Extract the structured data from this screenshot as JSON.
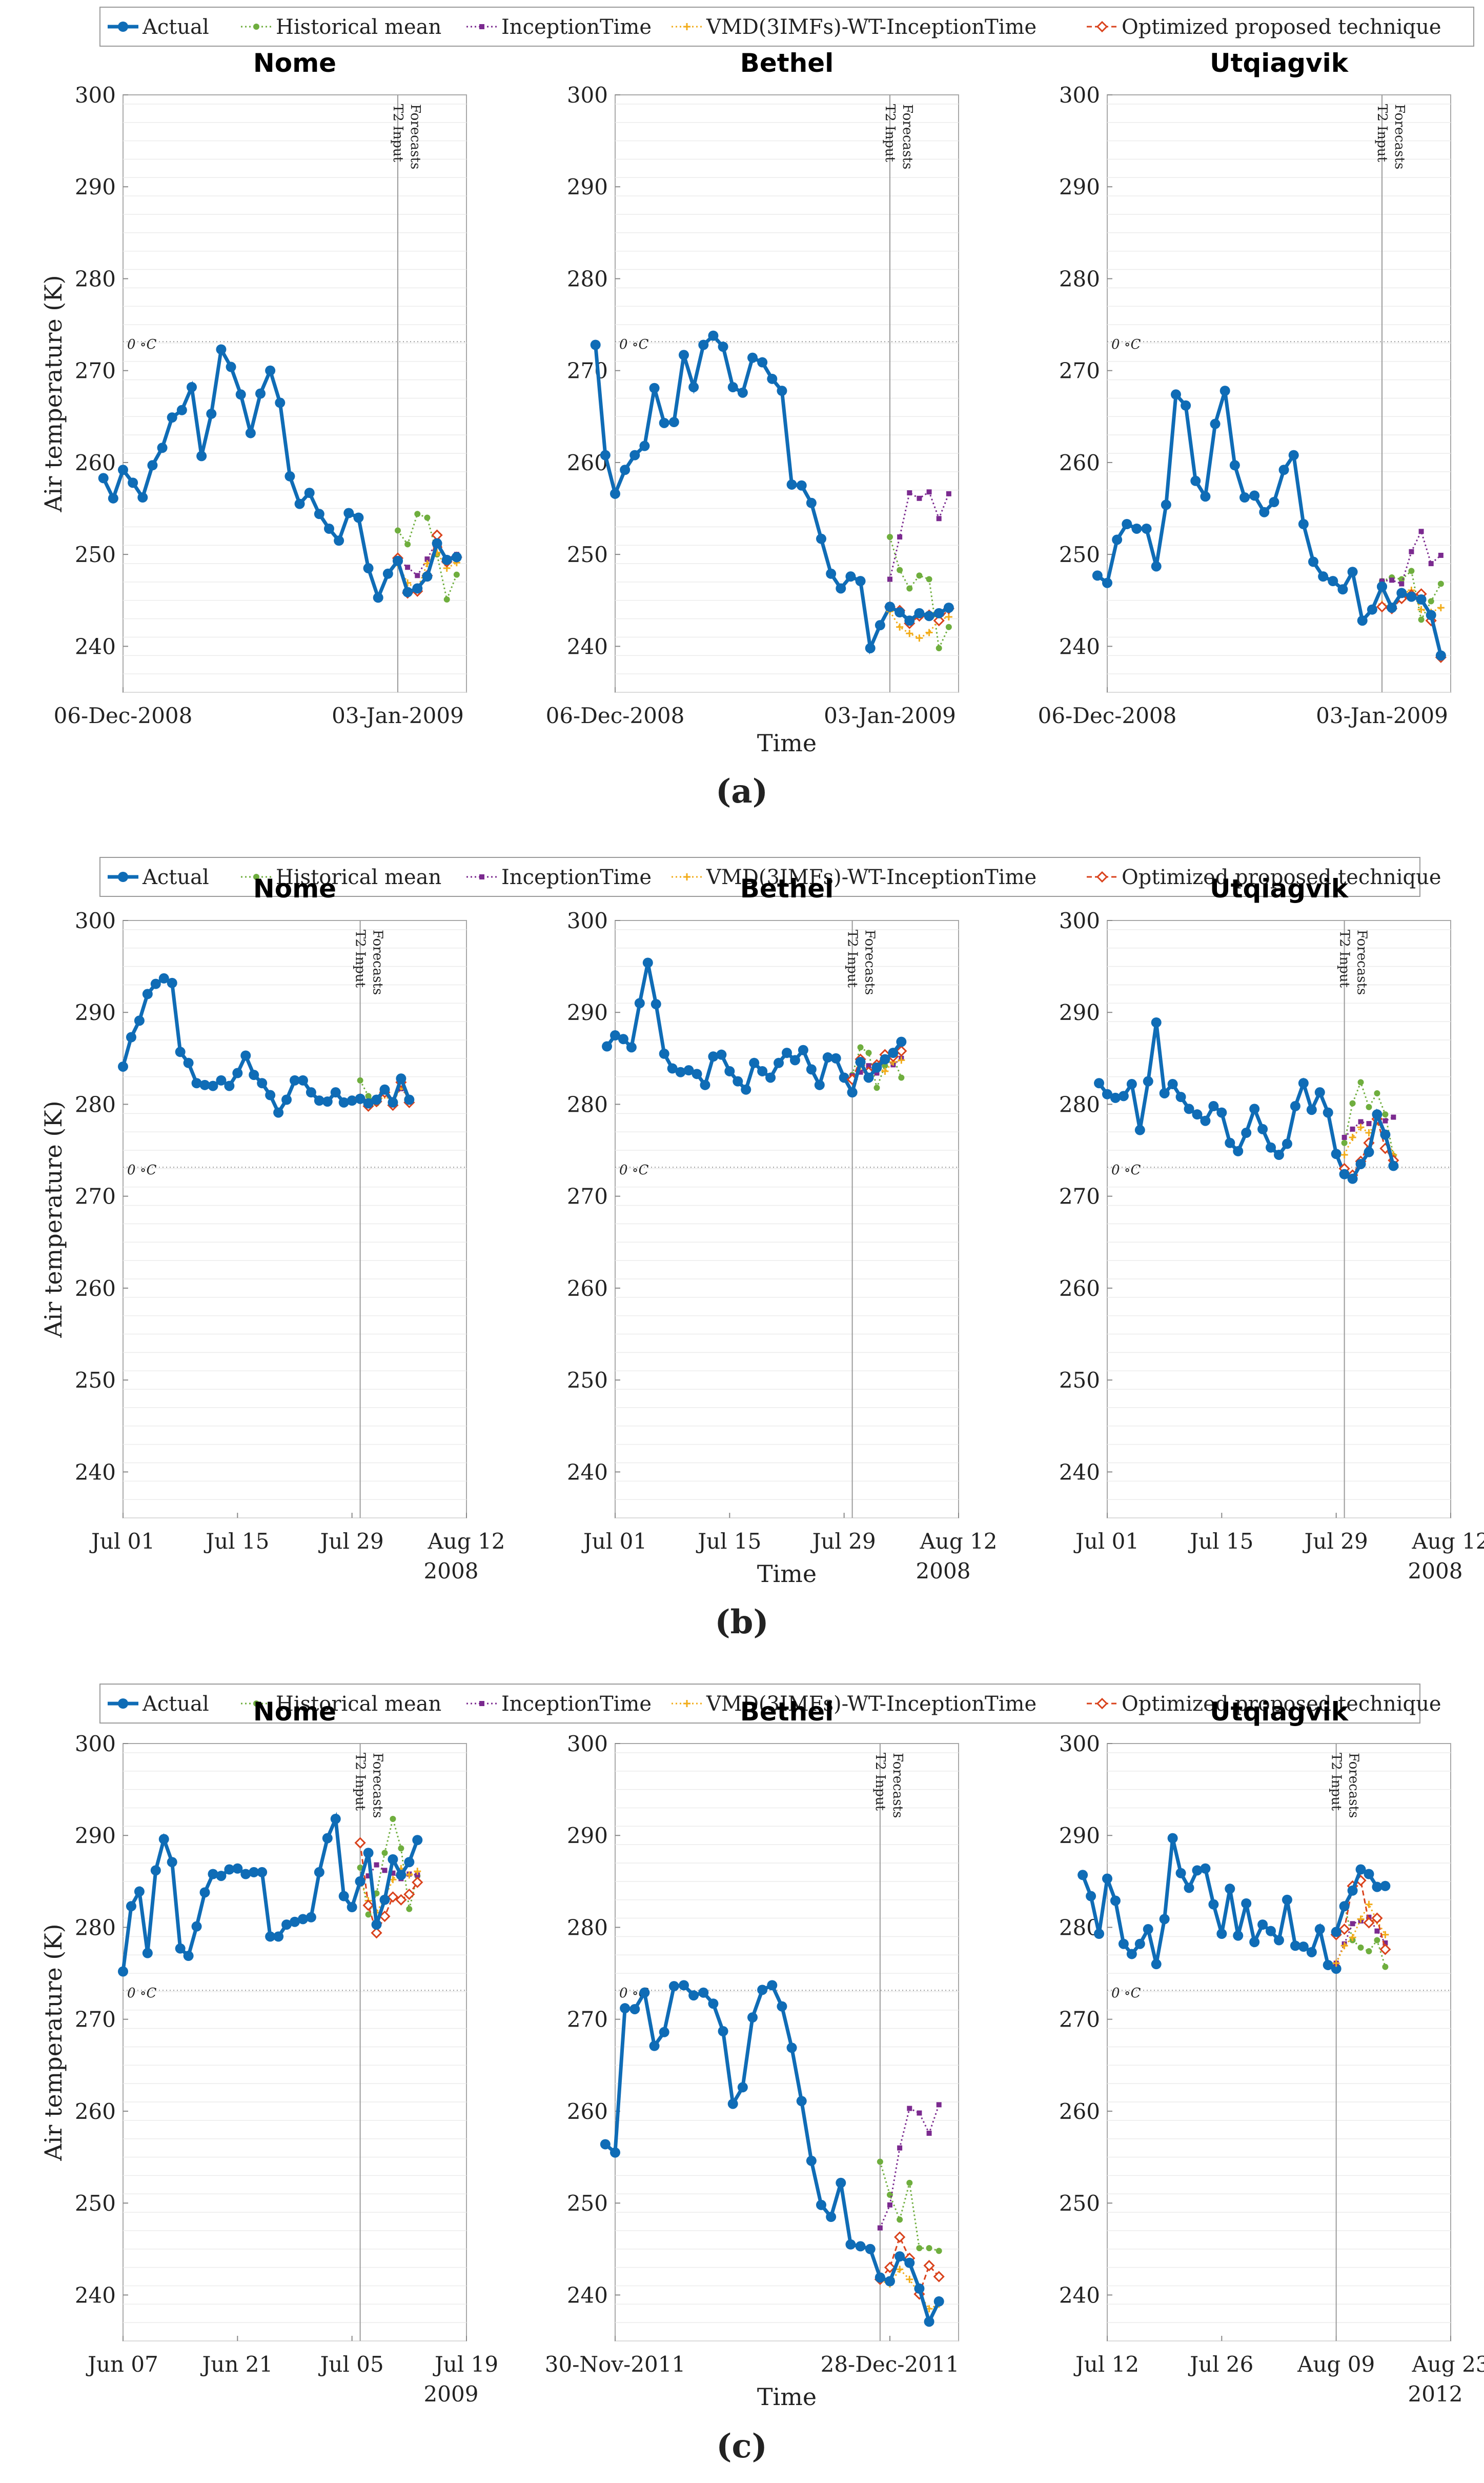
{
  "legend": {
    "items": [
      {
        "key": "actual",
        "label": "Actual"
      },
      {
        "key": "historical",
        "label": "Historical mean"
      },
      {
        "key": "inception",
        "label": "InceptionTime"
      },
      {
        "key": "vmd",
        "label": "VMD(3IMFs)-WT-InceptionTime"
      },
      {
        "key": "optimized",
        "label": "Optimized proposed technique"
      }
    ]
  },
  "series_colors": {
    "actual": "#0f6cb6",
    "historical": "#6fae3e",
    "inception": "#7b2a8f",
    "vmd": "#f2ac1a",
    "optimized": "#d9421c"
  },
  "common": {
    "ylabel": "Air temperature (K)",
    "xlabel": "Time",
    "freezing_label": "0 ∘C",
    "freezing_value": 273.15,
    "split_label_input": "T2 Input",
    "split_label_forecasts": "Forecasts",
    "yticks": [
      240,
      250,
      260,
      270,
      280,
      290,
      300
    ]
  },
  "chart_data": [
    {
      "panel": "(a)",
      "type": "line",
      "xticks": [
        {
          "label": "06-Dec-2008",
          "x": 0
        },
        {
          "label": "03-Jan-2009",
          "x": 28
        }
      ],
      "year_label": "",
      "xlim": [
        0,
        35
      ],
      "ylim": [
        235,
        300
      ],
      "split_x": 28,
      "charts": [
        {
          "title": "Nome",
          "actual": [
            258.3,
            256.1,
            259.2,
            257.8,
            256.2,
            259.7,
            261.6,
            264.9,
            265.7,
            268.2,
            260.7,
            265.3,
            272.3,
            270.4,
            267.4,
            263.2,
            267.5,
            270.0,
            266.5,
            258.5,
            255.5,
            256.7,
            254.4,
            252.8,
            251.5,
            254.5,
            254.0,
            248.5,
            245.3,
            247.9,
            249.3
          ],
          "actual_x0": 0,
          "forecasts": {
            "historical": [
              252.6,
              251.1,
              254.4,
              254.0,
              250.0,
              245.1,
              247.8
            ],
            "inception": [
              249.4,
              248.6,
              247.7,
              249.5,
              251.5,
              249.5,
              250.0
            ],
            "vmd": [
              249.0,
              246.9,
              246.2,
              249.0,
              250.2,
              248.5,
              249.1
            ],
            "optimized": [
              249.6,
              245.8,
              246.0,
              247.7,
              252.1,
              249.2,
              249.7
            ],
            "actual": [
              249.3,
              245.9,
              246.3,
              247.6,
              251.2,
              249.4,
              249.7
            ]
          }
        },
        {
          "title": "Bethel",
          "actual": [
            272.8,
            260.8,
            256.6,
            259.2,
            260.8,
            261.8,
            268.1,
            264.3,
            264.4,
            271.7,
            268.2,
            272.8,
            273.8,
            272.6,
            268.2,
            267.6,
            271.4,
            270.9,
            269.1,
            267.8,
            257.6,
            257.5,
            255.6,
            251.7,
            247.9,
            246.3,
            247.6,
            247.1,
            239.8,
            242.3,
            244.3
          ],
          "actual_x0": 0,
          "forecasts": {
            "historical": [
              251.9,
              248.3,
              246.3,
              247.7,
              247.3,
              239.8,
              242.1
            ],
            "inception": [
              247.3,
              251.9,
              256.7,
              256.1,
              256.8,
              253.9,
              256.6
            ],
            "vmd": [
              243.8,
              242.1,
              241.4,
              240.9,
              241.5,
              242.9,
              243.2
            ],
            "optimized": [
              244.3,
              243.9,
              242.5,
              243.3,
              243.4,
              242.8,
              244.1
            ],
            "actual": [
              244.3,
              243.7,
              242.8,
              243.6,
              243.3,
              243.6,
              244.2
            ]
          }
        },
        {
          "title": "Utqiagvik",
          "actual": [
            247.7,
            246.9,
            251.6,
            253.3,
            252.8,
            252.8,
            248.7,
            255.4,
            267.4,
            266.2,
            258.0,
            256.3,
            264.2,
            267.8,
            259.7,
            256.2,
            256.4,
            254.6,
            255.7,
            259.2,
            260.8,
            253.3,
            249.2,
            247.6,
            247.1,
            246.2,
            248.1,
            242.8,
            244.0,
            246.5
          ],
          "actual_x0": 0,
          "forecasts": {
            "historical": [
              247.1,
              247.5,
              247.3,
              248.2,
              242.9,
              244.9,
              246.8
            ],
            "inception": [
              247.1,
              247.2,
              246.8,
              250.3,
              252.5,
              249.0,
              249.9
            ],
            "vmd": [
              244.6,
              244.2,
              245.7,
              246.1,
              244.0,
              243.7,
              244.2
            ],
            "optimized": [
              244.3,
              244.1,
              245.2,
              245.6,
              245.7,
              242.8,
              238.8
            ],
            "actual": [
              246.5,
              244.2,
              245.8,
              245.4,
              245.1,
              243.4,
              239.0
            ]
          }
        }
      ]
    },
    {
      "panel": "(b)",
      "type": "line",
      "xticks": [
        {
          "label": "Jul 01",
          "x": 0
        },
        {
          "label": "Jul 15",
          "x": 14
        },
        {
          "label": "Jul 29",
          "x": 28
        },
        {
          "label": "Aug 12",
          "x": 42
        }
      ],
      "year_label": "2008",
      "xlim": [
        0,
        42
      ],
      "ylim": [
        235,
        300
      ],
      "split_x": 29,
      "charts": [
        {
          "title": "Nome",
          "actual": [
            284.1,
            287.3,
            289.1,
            292.0,
            293.1,
            293.7,
            293.2,
            285.7,
            284.5,
            282.3,
            282.1,
            282.0,
            282.6,
            282.0,
            283.4,
            285.3,
            283.2,
            282.3,
            281.0,
            279.1,
            280.5,
            282.6,
            282.6,
            281.3,
            280.4,
            280.3,
            281.3,
            280.2,
            280.4,
            280.6
          ],
          "actual_x0": 0,
          "forecasts": {
            "historical": [
              282.6,
              280.9,
              280.1,
              281.5,
              280.4,
              282.6,
              280.4
            ],
            "inception": [
              280.6,
              280.3,
              280.4,
              281.3,
              280.5,
              281.7,
              280.7
            ],
            "vmd": [
              280.6,
              280.0,
              280.1,
              281.0,
              280.1,
              281.9,
              280.5
            ],
            "optimized": [
              280.6,
              279.8,
              280.3,
              281.3,
              279.9,
              282.4,
              280.2
            ],
            "actual": [
              280.6,
              280.1,
              280.5,
              281.6,
              280.2,
              282.8,
              280.5
            ]
          }
        },
        {
          "title": "Bethel",
          "actual": [
            286.3,
            287.5,
            287.1,
            286.2,
            291.0,
            295.4,
            290.9,
            285.5,
            283.9,
            283.5,
            283.7,
            283.3,
            282.1,
            285.2,
            285.4,
            283.6,
            282.5,
            281.6,
            284.5,
            283.6,
            282.9,
            284.5,
            285.6,
            284.8,
            285.9,
            283.8,
            282.1,
            285.1,
            285.0,
            282.9,
            281.3
          ],
          "actual_x0": 0,
          "forecasts": {
            "historical": [
              283.2,
              286.2,
              285.6,
              281.8,
              284.2,
              285.1,
              282.9
            ],
            "inception": [
              283.1,
              283.5,
              284.2,
              283.4,
              285.0,
              284.3,
              285.0
            ],
            "vmd": [
              282.5,
              284.1,
              283.2,
              284.0,
              283.6,
              284.6,
              284.8
            ],
            "optimized": [
              282.7,
              284.9,
              283.5,
              284.3,
              285.4,
              285.2,
              285.8
            ],
            "actual": [
              281.3,
              284.6,
              282.9,
              284.0,
              284.9,
              285.6,
              286.8
            ]
          }
        },
        {
          "title": "Utqiagvik",
          "actual": [
            282.3,
            281.1,
            280.7,
            280.9,
            282.2,
            277.2,
            282.5,
            288.9,
            281.2,
            282.2,
            280.8,
            279.5,
            278.9,
            278.2,
            279.8,
            279.1,
            275.8,
            274.9,
            276.9,
            279.5,
            277.3,
            275.3,
            274.5,
            275.7,
            279.8,
            282.3,
            279.4,
            281.3,
            279.1,
            274.6,
            272.4
          ],
          "actual_x0": 0,
          "forecasts": {
            "historical": [
              275.8,
              280.1,
              282.4,
              279.7,
              281.2,
              278.9,
              274.4
            ],
            "inception": [
              276.4,
              277.3,
              278.1,
              277.9,
              278.7,
              278.2,
              278.6
            ],
            "vmd": [
              274.5,
              276.4,
              277.5,
              276.9,
              278.1,
              276.7,
              274.5
            ],
            "optimized": [
              273.0,
              272.3,
              273.8,
              275.8,
              278.4,
              275.2,
              273.9
            ],
            "actual": [
              272.4,
              271.9,
              273.5,
              274.8,
              278.9,
              276.7,
              273.3
            ]
          }
        }
      ]
    },
    {
      "panel": "(c)",
      "type": "line",
      "xticks_per_chart": true,
      "year_label": "",
      "ylim": [
        235,
        300
      ],
      "charts": [
        {
          "title": "Nome",
          "xticks": [
            {
              "label": "Jun 07",
              "x": 0
            },
            {
              "label": "Jun 21",
              "x": 14
            },
            {
              "label": "Jul 05",
              "x": 28
            },
            {
              "label": "Jul 19",
              "x": 42
            }
          ],
          "year_label": "2009",
          "xlim": [
            0,
            42
          ],
          "split_x": 29,
          "actual": [
            275.2,
            282.3,
            283.9,
            277.2,
            286.2,
            289.6,
            287.1,
            277.7,
            276.9,
            280.1,
            283.8,
            285.8,
            285.6,
            286.3,
            286.4,
            285.8,
            286.0,
            286.0,
            279.0,
            279.0,
            280.3,
            280.6,
            280.9,
            281.1,
            286.0,
            289.7,
            291.8,
            283.4,
            282.2,
            285.0
          ],
          "actual_x0": 0,
          "forecasts": {
            "historical": [
              286.5,
              281.4,
              283.7,
              288.1,
              291.8,
              288.6,
              282.0,
              285.6
            ],
            "inception": [
              285.1,
              285.6,
              286.8,
              286.2,
              285.9,
              285.3,
              285.8,
              285.7
            ],
            "vmd": [
              285.0,
              282.9,
              281.6,
              283.2,
              285.2,
              286.4,
              285.7,
              286.1
            ],
            "optimized": [
              289.2,
              282.4,
              279.4,
              281.2,
              283.3,
              283.0,
              283.6,
              284.9
            ],
            "actual": [
              285.0,
              288.1,
              280.3,
              283.0,
              287.4,
              285.7,
              287.1,
              289.5
            ]
          }
        },
        {
          "title": "Bethel",
          "xticks": [
            {
              "label": "30-Nov-2011",
              "x": 0
            },
            {
              "label": "28-Dec-2011",
              "x": 28
            }
          ],
          "year_label": "",
          "xlim": [
            0,
            35
          ],
          "split_x": 27,
          "actual": [
            256.4,
            255.5,
            271.2,
            271.1,
            272.9,
            267.1,
            268.6,
            273.6,
            273.7,
            272.6,
            272.9,
            271.7,
            268.7,
            260.8,
            262.6,
            270.2,
            273.2,
            273.7,
            271.4,
            266.9,
            261.1,
            254.6,
            249.8,
            248.5,
            252.2,
            245.5,
            245.3,
            245.0,
            241.9
          ],
          "actual_x0": 0,
          "forecasts": {
            "historical": [
              254.5,
              250.9,
              248.2,
              252.2,
              245.1,
              245.1,
              244.8
            ],
            "inception": [
              247.3,
              249.8,
              256.0,
              260.3,
              259.8,
              257.6,
              260.7
            ],
            "vmd": [
              241.6,
              241.2,
              242.8,
              241.7,
              240.1,
              238.5,
              239.0
            ],
            "optimized": [
              241.7,
              243.0,
              246.3,
              244.0,
              240.1,
              243.2,
              242.0
            ],
            "actual": [
              241.9,
              241.5,
              244.2,
              243.5,
              240.7,
              237.1,
              239.3
            ]
          }
        },
        {
          "title": "Utqiagvik",
          "xticks": [
            {
              "label": "Jul 12",
              "x": 0
            },
            {
              "label": "Jul 26",
              "x": 14
            },
            {
              "label": "Aug 09",
              "x": 28
            },
            {
              "label": "Aug 23",
              "x": 42
            }
          ],
          "year_label": "2012",
          "xlim": [
            0,
            42
          ],
          "split_x": 28,
          "actual": [
            285.7,
            283.4,
            279.3,
            285.3,
            282.9,
            278.2,
            277.1,
            278.2,
            279.8,
            276.0,
            280.9,
            289.7,
            285.9,
            284.3,
            286.2,
            286.4,
            282.5,
            279.3,
            284.2,
            279.1,
            282.6,
            278.4,
            280.3,
            279.6,
            278.6,
            283.0,
            278.0,
            277.9,
            277.3,
            279.8,
            275.9,
            275.5
          ],
          "actual_x0": 0,
          "forecasts": {
            "historical": [
              279.5,
              282.5,
              278.6,
              277.8,
              277.4,
              278.6,
              275.7
            ],
            "inception": [
              276.1,
              278.2,
              280.4,
              280.7,
              281.1,
              279.6,
              278.3
            ],
            "vmd": [
              276.1,
              278.0,
              278.9,
              280.9,
              282.5,
              280.7,
              279.2
            ],
            "optimized": [
              279.2,
              279.8,
              284.5,
              285.1,
              280.5,
              281.0,
              277.6
            ],
            "actual": [
              279.5,
              282.3,
              284.0,
              286.3,
              285.8,
              284.4,
              284.5
            ]
          }
        }
      ]
    }
  ]
}
